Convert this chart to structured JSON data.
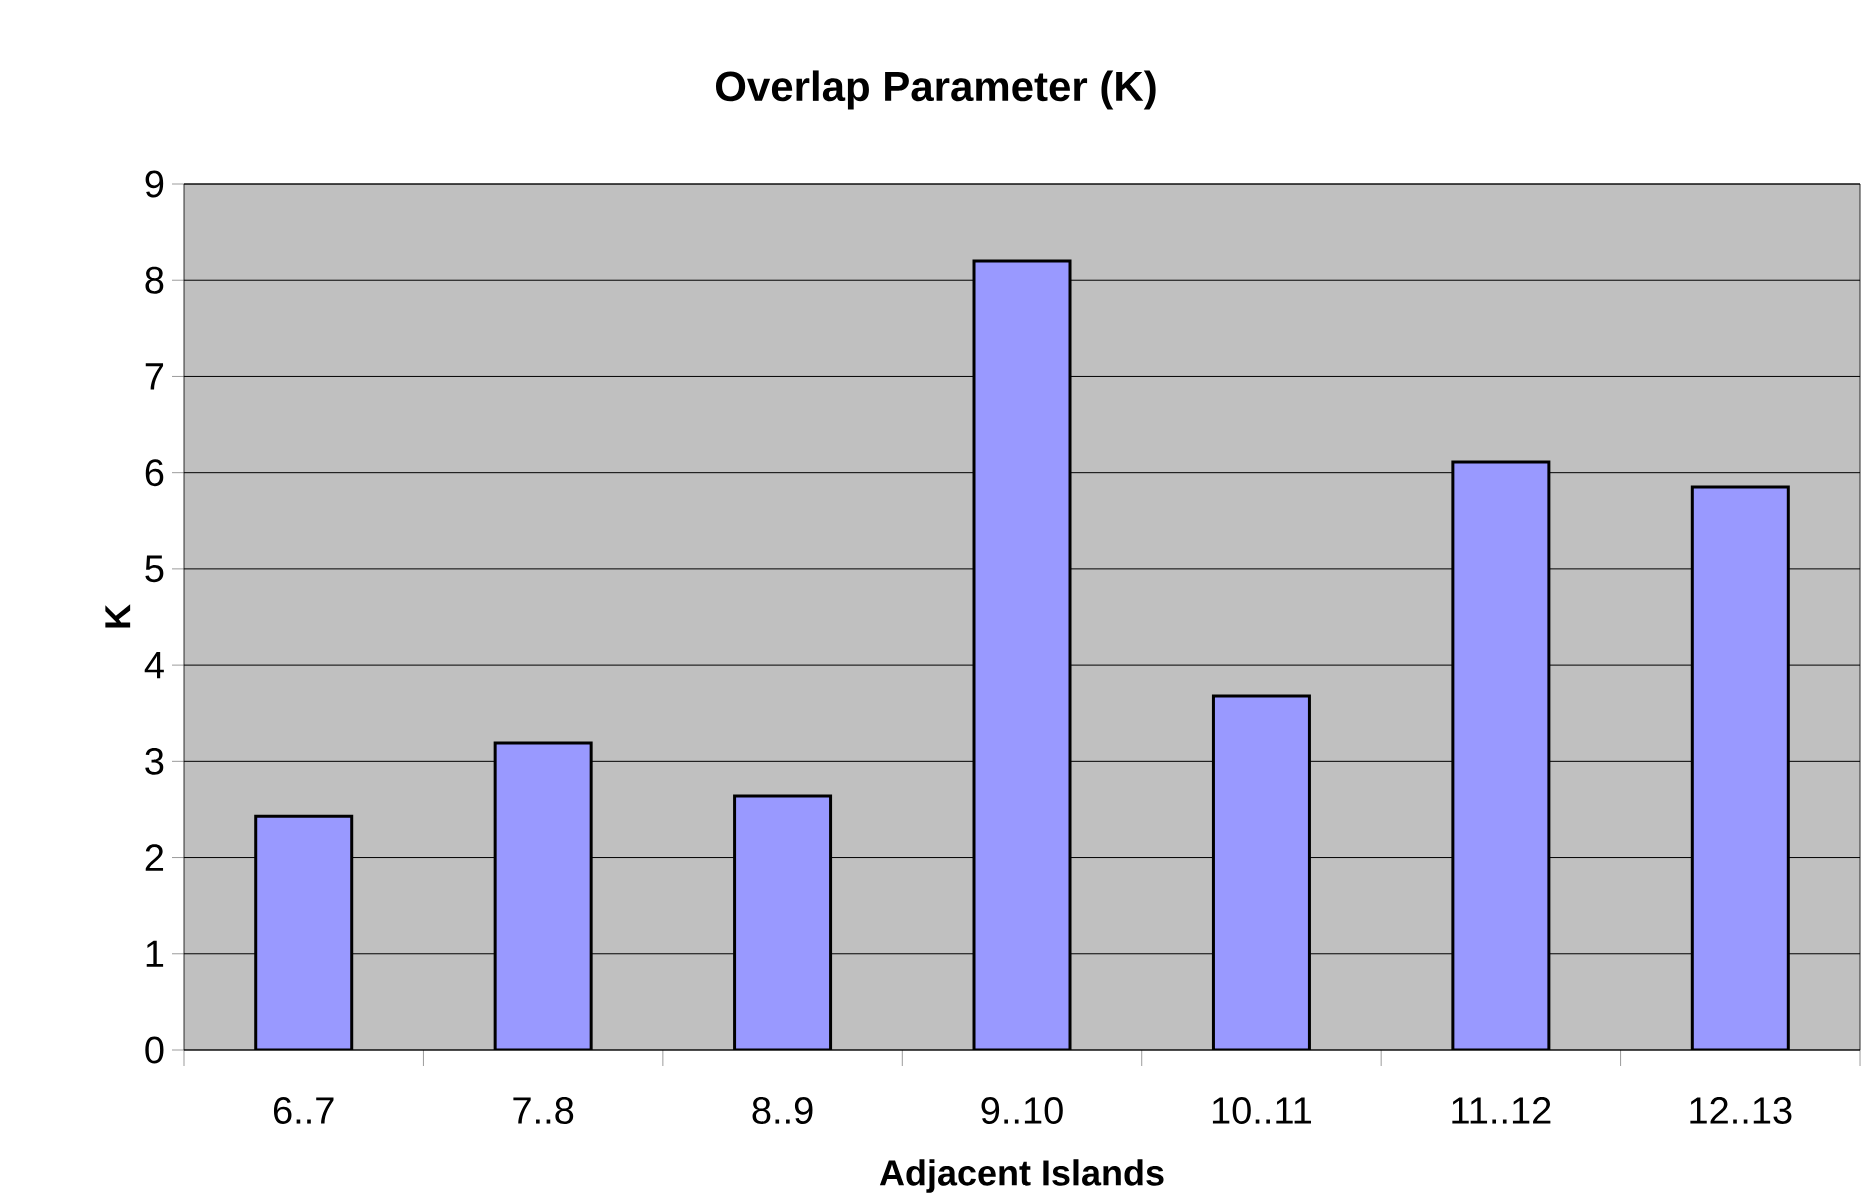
{
  "chart_data": {
    "type": "bar",
    "title": "Overlap Parameter (K)",
    "xlabel": "Adjacent Islands",
    "ylabel": "K",
    "categories": [
      "6..7",
      "7..8",
      "8..9",
      "9..10",
      "10..11",
      "11..12",
      "12..13"
    ],
    "values": [
      2.43,
      3.19,
      2.64,
      8.2,
      3.68,
      6.11,
      5.85
    ],
    "color": "#9999ff",
    "ylim": [
      0,
      9
    ],
    "yticks": [
      0,
      1,
      2,
      3,
      4,
      5,
      6,
      7,
      8,
      9
    ],
    "grid": "y"
  }
}
